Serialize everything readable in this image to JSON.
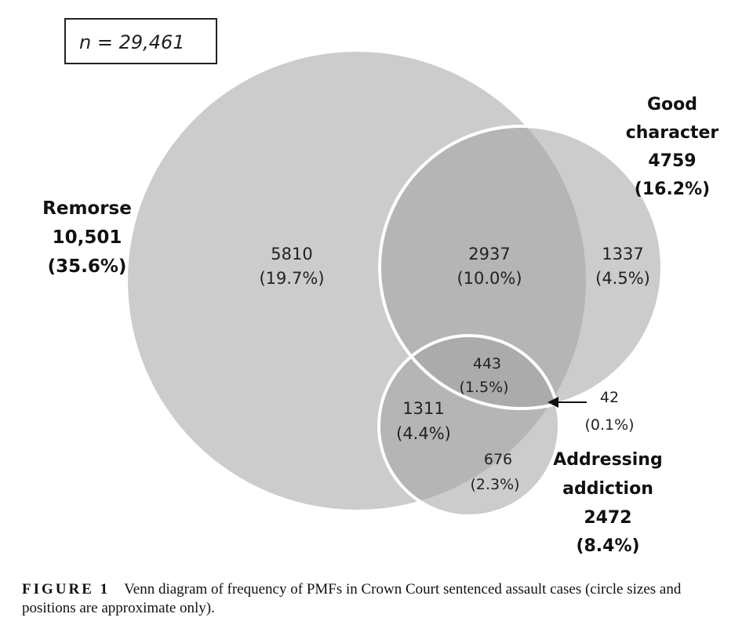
{
  "sample_size": "n = 29,461",
  "sets": {
    "remorse": {
      "name": "Remorse",
      "count": "10,501",
      "pct": "(35.6%)"
    },
    "good_character": {
      "name_line1": "Good",
      "name_line2": "character",
      "count": "4759",
      "pct": "(16.2%)"
    },
    "addressing_addiction": {
      "name_line1": "Addressing",
      "name_line2": "addiction",
      "count": "2472",
      "pct": "(8.4%)"
    }
  },
  "regions": {
    "remorse_only": {
      "count": "5810",
      "pct": "(19.7%)"
    },
    "remorse_good": {
      "count": "2937",
      "pct": "(10.0%)"
    },
    "good_only": {
      "count": "1337",
      "pct": "(4.5%)"
    },
    "all_three": {
      "count": "443",
      "pct": "(1.5%)"
    },
    "remorse_addiction": {
      "count": "1311",
      "pct": "(4.4%)"
    },
    "addiction_only": {
      "count": "676",
      "pct": "(2.3%)"
    },
    "good_addiction": {
      "count": "42",
      "pct": "(0.1%)"
    }
  },
  "colors": {
    "circle_fill": "#a9a9a9",
    "outline": "#ffffff"
  },
  "caption": {
    "label": "FIGURE 1",
    "text": "Venn diagram of frequency of PMFs in Crown Court sentenced assault cases (circle sizes and positions are approximate only)."
  }
}
